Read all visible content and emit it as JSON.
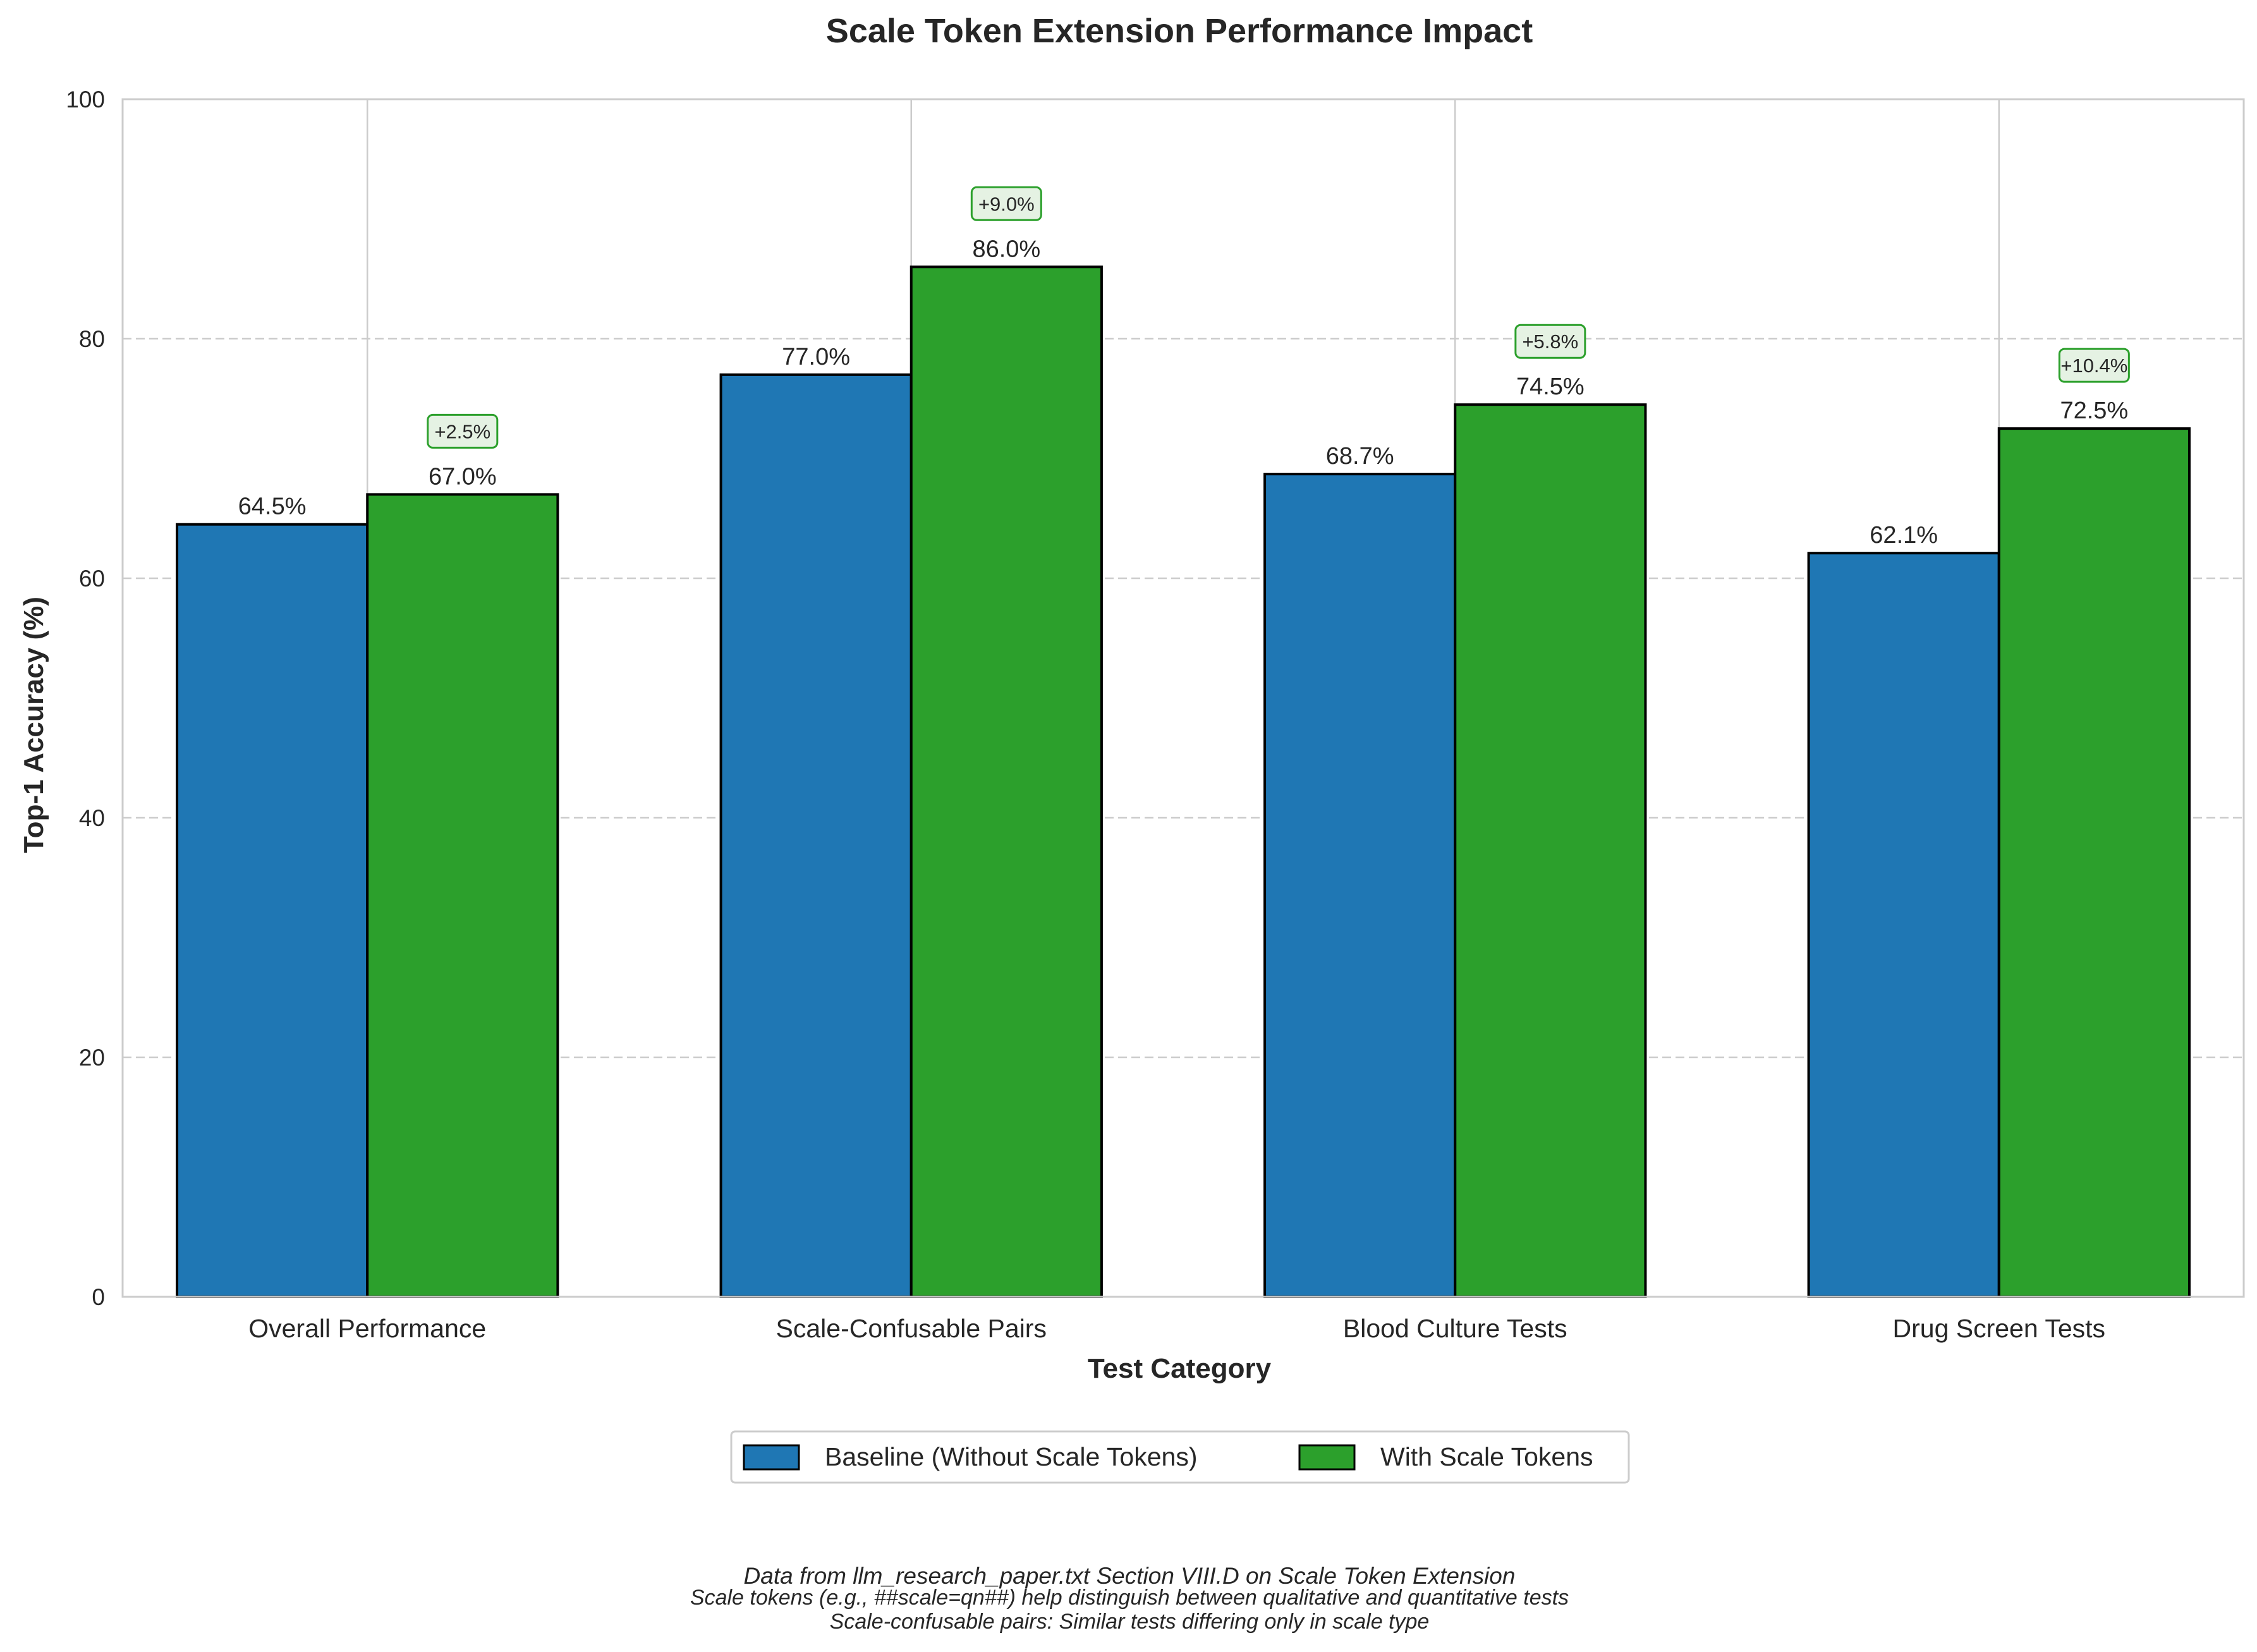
{
  "chart_data": {
    "type": "bar",
    "title": "Scale Token Extension Performance Impact",
    "xlabel": "Test Category",
    "ylabel": "Top-1 Accuracy (%)",
    "ylim": [
      0,
      100
    ],
    "yticks": [
      "0",
      "20",
      "40",
      "60",
      "80",
      "100"
    ],
    "grid": "y-dashed",
    "legend_position": "bottom-center",
    "categories": [
      "Overall Performance",
      "Scale-Confusable Pairs",
      "Blood Culture Tests",
      "Drug Screen Tests"
    ],
    "series": [
      {
        "name": "Baseline (Without Scale Tokens)",
        "color": "#1f77b4",
        "values": [
          64.5,
          77.0,
          68.7,
          62.1
        ],
        "labels": [
          "64.5%",
          "77.0%",
          "68.7%",
          "62.1%"
        ]
      },
      {
        "name": "With Scale Tokens",
        "color": "#2ca02c",
        "values": [
          67.0,
          86.0,
          74.5,
          72.5
        ],
        "labels": [
          "67.0%",
          "86.0%",
          "74.5%",
          "72.5%"
        ]
      }
    ],
    "improvements": [
      "+2.5%",
      "+9.0%",
      "+5.8%",
      "+10.4%"
    ],
    "improvement_box_colors": {
      "fill": "#e5f2e3",
      "stroke": "#2ca02c"
    },
    "footnotes": [
      "Data from llm_research_paper.txt Section VIII.D on Scale Token Extension",
      "Scale tokens (e.g., ##scale=qn##) help distinguish between qualitative and quantitative tests",
      "Scale-confusable pairs: Similar tests differing only in scale type"
    ]
  }
}
